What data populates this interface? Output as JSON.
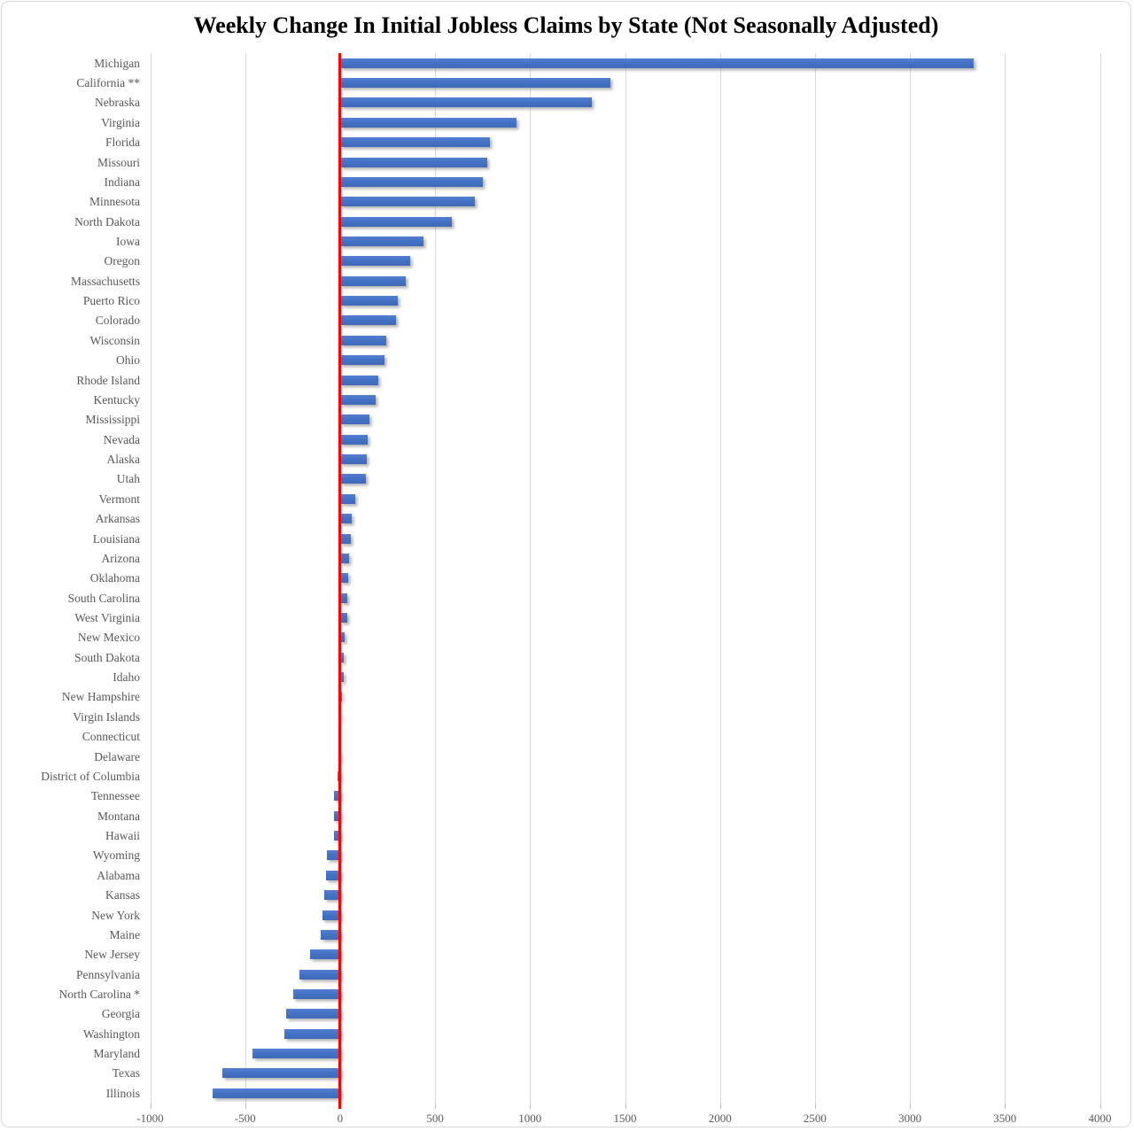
{
  "chart_data": {
    "type": "bar",
    "orientation": "horizontal",
    "title": "Weekly Change In Initial Jobless Claims by State (Not Seasonally Adjusted)",
    "xlabel": "",
    "ylabel": "",
    "xlim": [
      -1000,
      4000
    ],
    "x_ticks": [
      -1000,
      -500,
      0,
      500,
      1000,
      1500,
      2000,
      2500,
      3000,
      3500,
      4000
    ],
    "x_tick_labels": [
      "-1000",
      "-500",
      "0",
      "500",
      "1000",
      "1500",
      "2000",
      "2500",
      "3000",
      "3500",
      "4000"
    ],
    "grid": true,
    "legend": false,
    "zero_line_color": "#ff0000",
    "bar_color": "#4472c4",
    "gridline_color": "#d9d9d9",
    "label_color": "#595959",
    "categories": [
      "Michigan",
      "California **",
      "Nebraska",
      "Virginia",
      "Florida",
      "Missouri",
      "Indiana",
      "Minnesota",
      "North Dakota",
      "Iowa",
      "Oregon",
      "Massachusetts",
      "Puerto Rico",
      "Colorado",
      "Wisconsin",
      "Ohio",
      "Rhode Island",
      "Kentucky",
      "Mississippi",
      "Nevada",
      "Alaska",
      "Utah",
      "Vermont",
      "Arkansas",
      "Louisiana",
      "Arizona",
      "Oklahoma",
      "South Carolina",
      "West Virginia",
      "New Mexico",
      "South Dakota",
      "Idaho",
      "New Hampshire",
      "Virgin Islands",
      "Connecticut",
      "Delaware",
      "District of Columbia",
      "Tennessee",
      "Montana",
      "Hawaii",
      "Wyoming",
      "Alabama",
      "Kansas",
      "New York",
      "Maine",
      "New Jersey",
      "Pennsylvania",
      "North Carolina *",
      "Georgia",
      "Washington",
      "Maryland",
      "Texas",
      "Illinois"
    ],
    "values": [
      3335,
      1425,
      1325,
      930,
      790,
      775,
      750,
      710,
      590,
      440,
      370,
      345,
      305,
      295,
      245,
      235,
      200,
      185,
      155,
      145,
      140,
      137,
      80,
      60,
      55,
      45,
      42,
      40,
      38,
      25,
      20,
      19,
      12,
      4,
      2,
      -10,
      -12,
      -30,
      -32,
      -33,
      -70,
      -75,
      -85,
      -95,
      -100,
      -160,
      -215,
      -245,
      -285,
      -295,
      -460,
      -620,
      -670
    ]
  }
}
